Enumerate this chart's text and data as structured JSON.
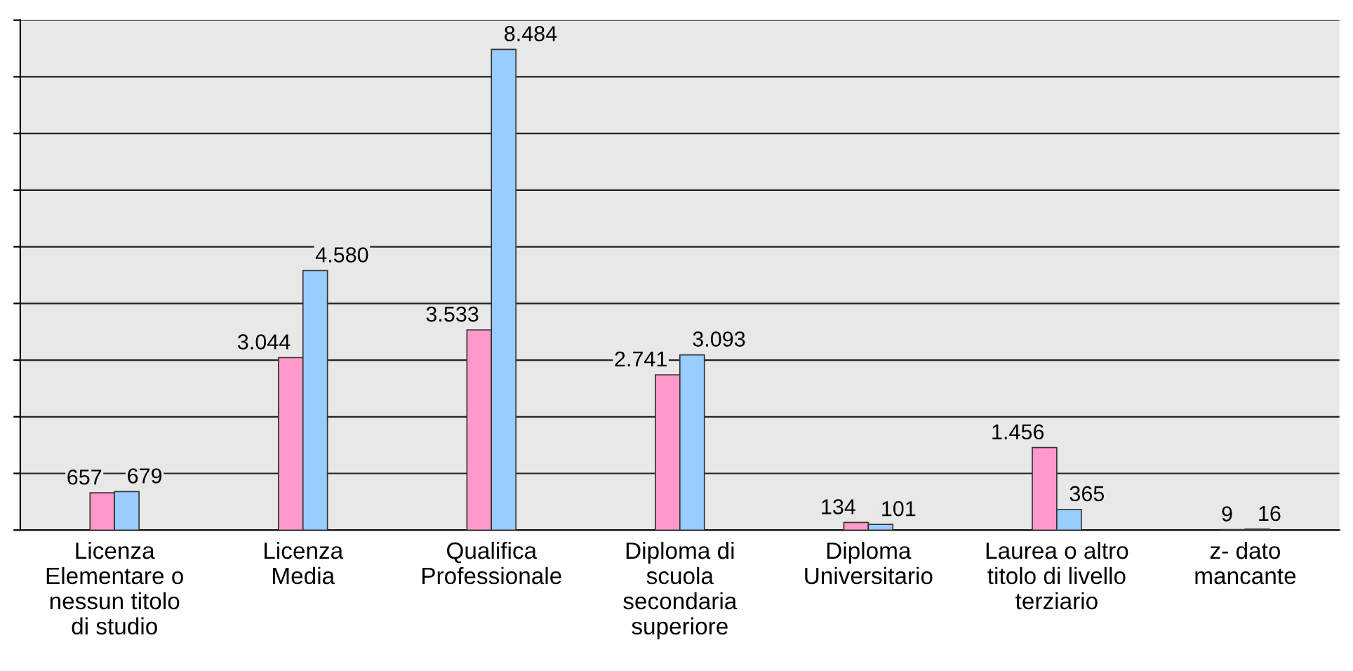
{
  "chart_data": {
    "type": "bar",
    "categories": [
      "Licenza\nElementare o\nnessun titolo\ndi studio",
      "Licenza\nMedia",
      "Qualifica\nProfessionale",
      "Diploma di\nscuola\nsecondaria\nsuperiore",
      "Diploma\nUniversitario",
      "Laurea o altro\ntitolo di livello\nterziario",
      "z- dato\nmancante"
    ],
    "series": [
      {
        "color": "#ff99cc",
        "values": [
          657,
          3044,
          3533,
          2741,
          134,
          1456,
          9
        ],
        "value_labels": [
          "657",
          "3.044",
          "3.533",
          "2.741",
          "134",
          "1.456",
          "9"
        ]
      },
      {
        "color": "#99ccff",
        "values": [
          679,
          4580,
          8484,
          3093,
          101,
          365,
          16
        ],
        "value_labels": [
          "679",
          "4.580",
          "8.484",
          "3.093",
          "101",
          "365",
          "16"
        ]
      }
    ],
    "ylim": [
      0,
      9000
    ],
    "yticks": [
      {
        "value": 0,
        "label": null
      },
      {
        "value": 1000,
        "label": null
      },
      {
        "value": 2000,
        "label": null
      },
      {
        "value": 3000,
        "label": null
      },
      {
        "value": 4000,
        "label": null
      },
      {
        "value": 5000,
        "label": null
      },
      {
        "value": 6000,
        "label": null
      },
      {
        "value": 7000,
        "label": null
      },
      {
        "value": 8000,
        "label": null
      },
      {
        "value": 9000,
        "label": null
      }
    ],
    "grid": "y",
    "legend": false
  }
}
